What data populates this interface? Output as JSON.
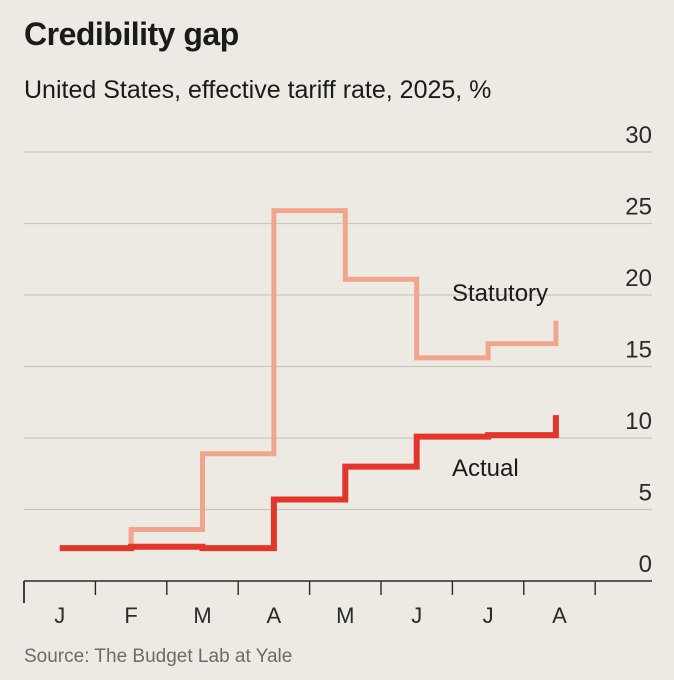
{
  "title": "Credibility gap",
  "subtitle": "United States, effective tariff rate, 2025, %",
  "source": "Source: The Budget Lab at Yale",
  "chart_data": {
    "type": "line",
    "step": true,
    "title": "Credibility gap",
    "subtitle": "United States, effective tariff rate, 2025, %",
    "xlabel": "",
    "ylabel": "%",
    "ylim": [
      0,
      30
    ],
    "yticks": [
      0,
      5,
      10,
      15,
      20,
      25,
      30
    ],
    "yaxis_side": "right",
    "xlim": [
      0,
      8.5
    ],
    "months": [
      "J",
      "F",
      "M",
      "A",
      "M",
      "J",
      "J",
      "A"
    ],
    "grid": true,
    "series": [
      {
        "name": "Statutory",
        "color": "#f2a58e",
        "points": [
          [
            0.5,
            2.3
          ],
          [
            1.5,
            2.3
          ],
          [
            1.5,
            3.6
          ],
          [
            2.5,
            3.6
          ],
          [
            2.5,
            8.9
          ],
          [
            3.5,
            8.9
          ],
          [
            3.5,
            25.9
          ],
          [
            4.5,
            25.9
          ],
          [
            4.5,
            21.1
          ],
          [
            5.5,
            21.1
          ],
          [
            5.5,
            15.6
          ],
          [
            6.5,
            15.6
          ],
          [
            6.5,
            16.6
          ],
          [
            7.45,
            16.6
          ],
          [
            7.45,
            18.2
          ]
        ]
      },
      {
        "name": "Actual",
        "color": "#e3352b",
        "points": [
          [
            0.5,
            2.3
          ],
          [
            1.5,
            2.3
          ],
          [
            1.5,
            2.4
          ],
          [
            2.5,
            2.4
          ],
          [
            2.5,
            2.3
          ],
          [
            3.5,
            2.3
          ],
          [
            3.5,
            5.7
          ],
          [
            4.5,
            5.7
          ],
          [
            4.5,
            8.0
          ],
          [
            5.5,
            8.0
          ],
          [
            5.5,
            10.1
          ],
          [
            6.5,
            10.1
          ],
          [
            6.5,
            10.2
          ],
          [
            7.45,
            10.2
          ],
          [
            7.45,
            11.6
          ]
        ]
      }
    ]
  }
}
